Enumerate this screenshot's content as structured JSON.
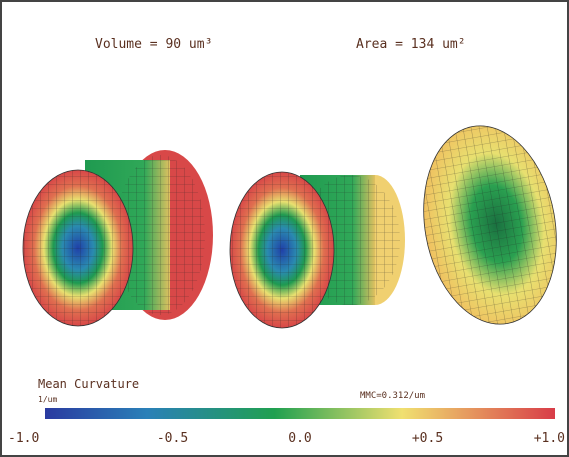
{
  "header": {
    "volume": "Volume = 90 um³",
    "area": "Area = 134 um²"
  },
  "colorbar": {
    "title": "Mean Curvature",
    "unit": "1/um",
    "note": "MMC=0.312/um",
    "ticks": [
      "-1.0",
      "-0.5",
      "0.0",
      "+0.5",
      "+1.0"
    ]
  }
}
